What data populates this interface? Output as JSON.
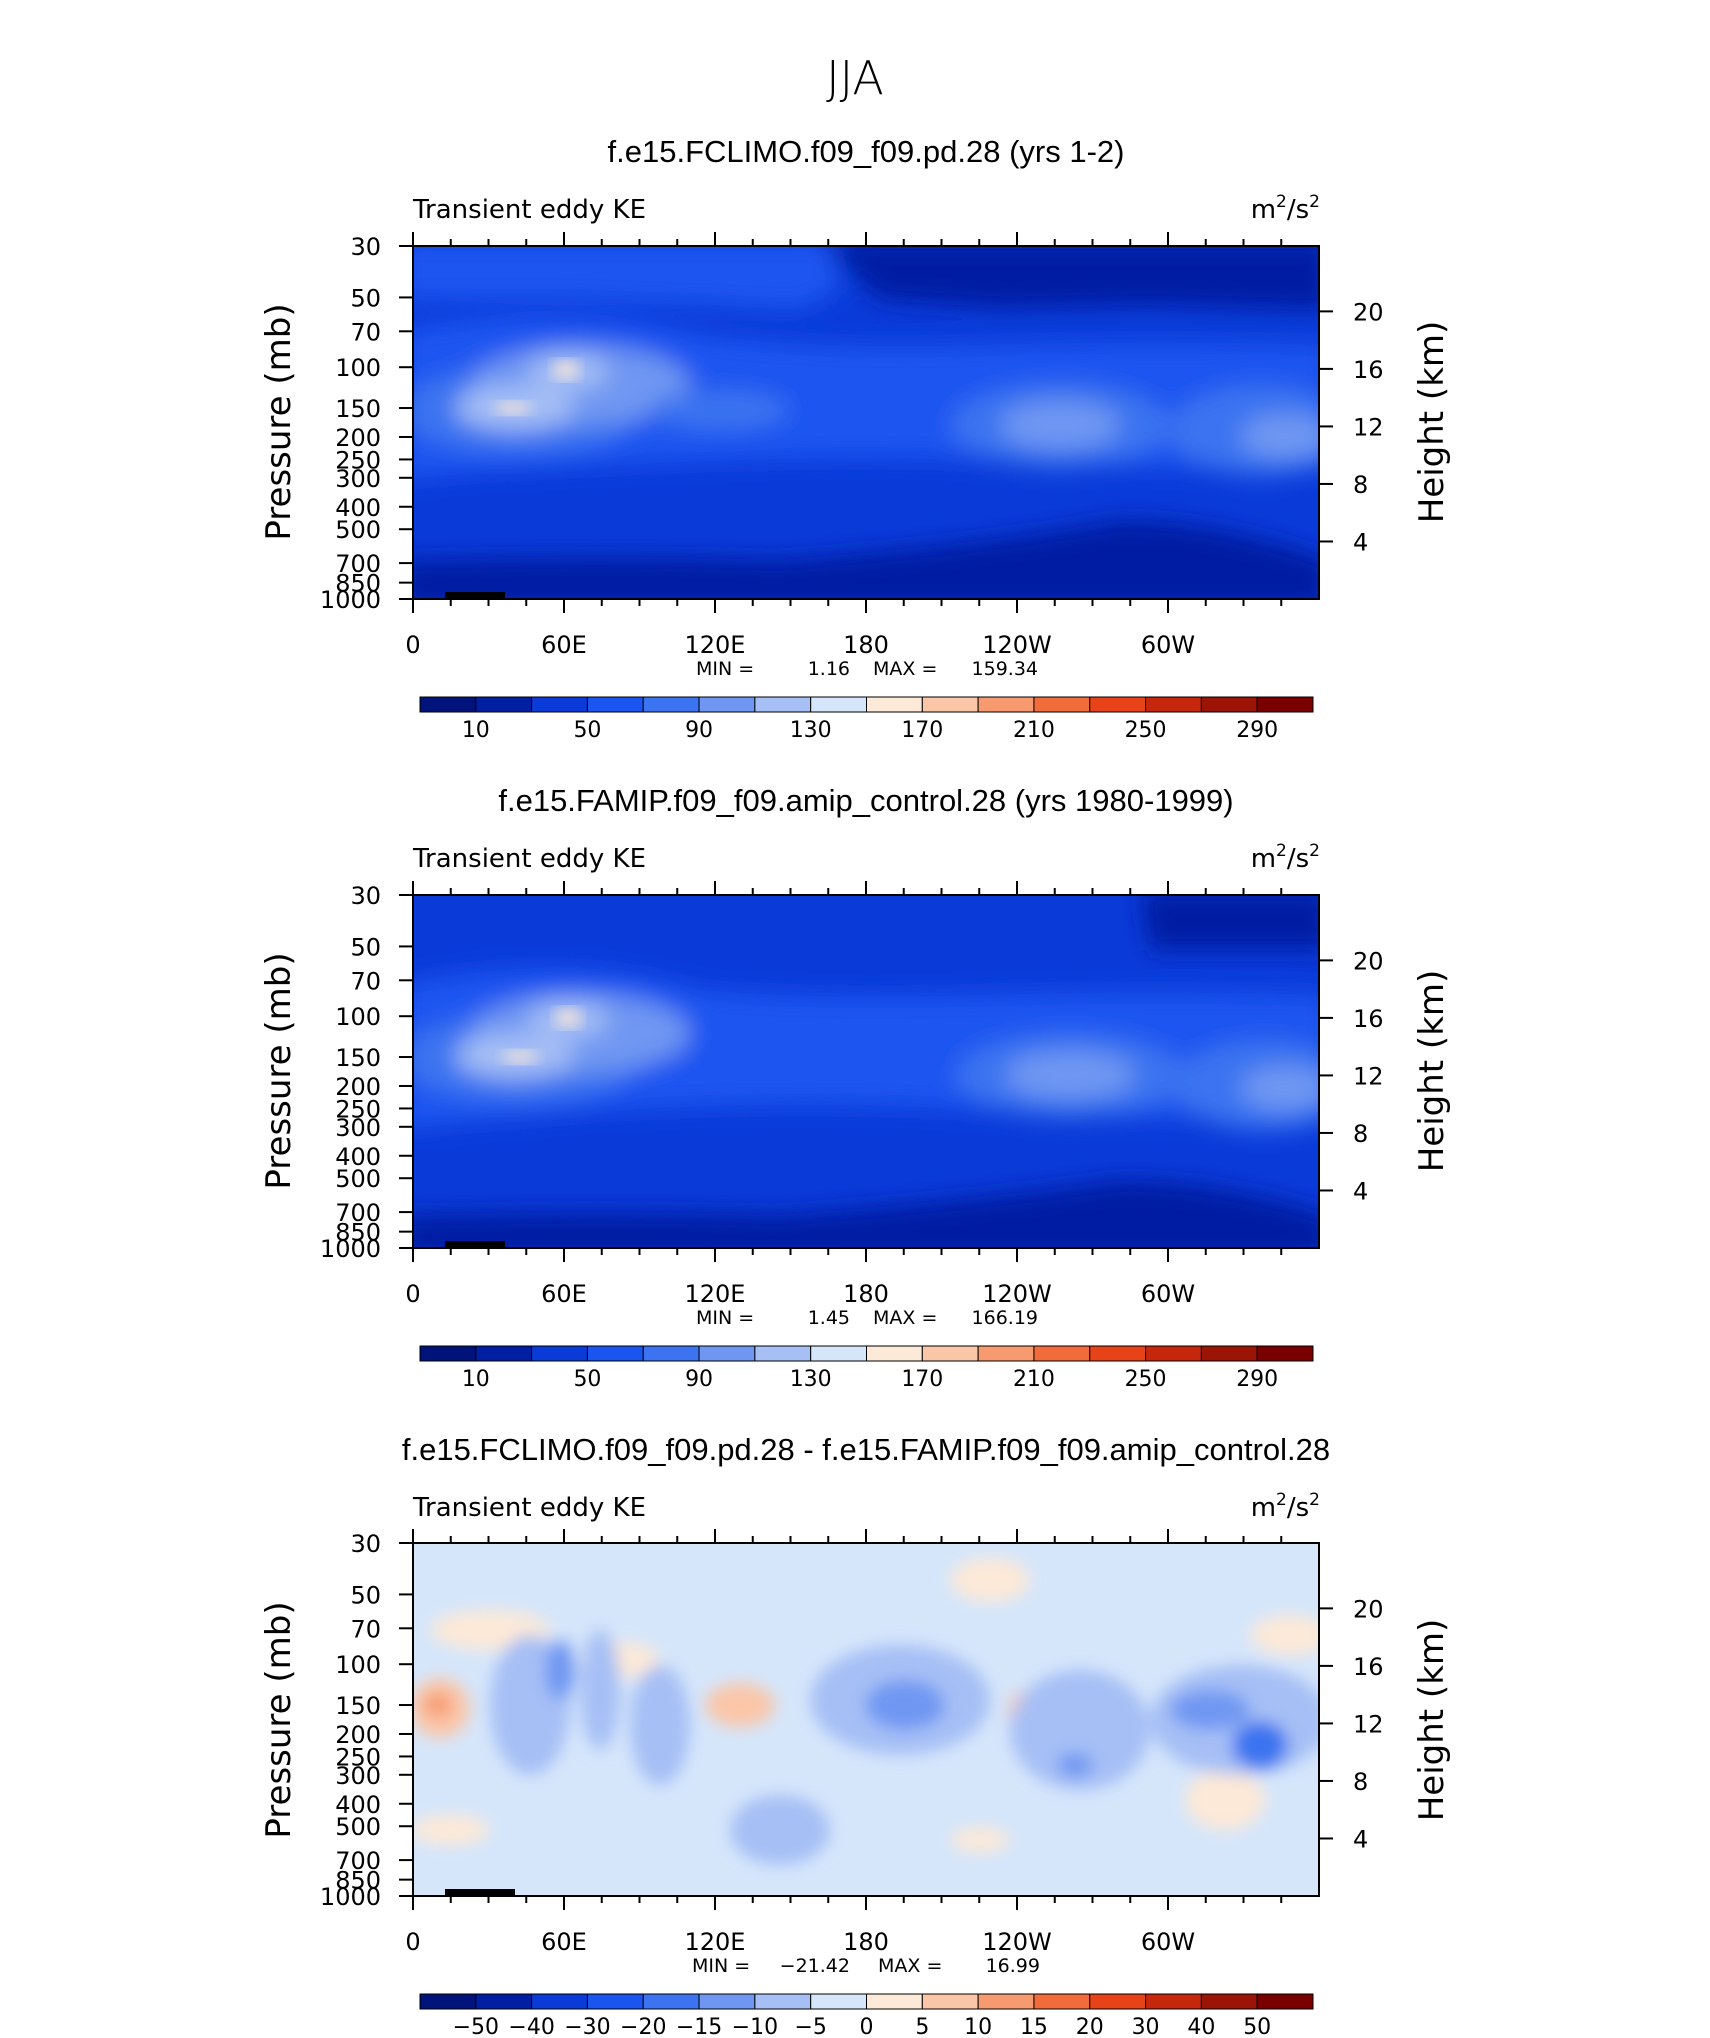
{
  "figure": {
    "main_title": "JJA",
    "left_label": "Transient eddy KE",
    "units": {
      "base": "m",
      "exp1": "2",
      "mid": "/s",
      "exp2": "2"
    },
    "y_title_left": "Pressure (mb)",
    "y_title_right": "Height (km)",
    "colors": {
      "background_field": "#cfe4fb",
      "land": "#000000"
    }
  },
  "chart_data": [
    {
      "type": "contour",
      "title": "f.e15.FCLIMO.f09_f09.pd.28 (yrs 1-2)",
      "x": {
        "ticks": [
          "0",
          "60E",
          "120E",
          "180",
          "120W",
          "60W"
        ],
        "range_deg": [
          0,
          360
        ]
      },
      "y_pressure": {
        "ticks": [
          "30",
          "50",
          "70",
          "100",
          "150",
          "200",
          "250",
          "300",
          "400",
          "500",
          "700",
          "850",
          "1000"
        ],
        "range_mb": [
          30,
          1000
        ]
      },
      "y_height": {
        "ticks": [
          "20",
          "16",
          "12",
          "8",
          "4"
        ]
      },
      "stats": {
        "min_label": "MIN =",
        "min": "1.16",
        "max_label": "MAX =",
        "max": "159.34"
      },
      "colorbar": {
        "labels": [
          "10",
          "50",
          "90",
          "130",
          "170",
          "210",
          "250",
          "290"
        ],
        "colors": [
          "#00137a",
          "#001fa3",
          "#0a3bd9",
          "#1a55f0",
          "#3b73f0",
          "#6f97f2",
          "#a6bff5",
          "#d5e6fb",
          "#fde9d7",
          "#fbc6a8",
          "#f79a70",
          "#f26b3a",
          "#e84218",
          "#c6260c",
          "#9b1405",
          "#7a0000"
        ]
      }
    },
    {
      "type": "contour",
      "title": "f.e15.FAMIP.f09_f09.amip_control.28 (yrs 1980-1999)",
      "x": {
        "ticks": [
          "0",
          "60E",
          "120E",
          "180",
          "120W",
          "60W"
        ],
        "range_deg": [
          0,
          360
        ]
      },
      "y_pressure": {
        "ticks": [
          "30",
          "50",
          "70",
          "100",
          "150",
          "200",
          "250",
          "300",
          "400",
          "500",
          "700",
          "850",
          "1000"
        ],
        "range_mb": [
          30,
          1000
        ]
      },
      "y_height": {
        "ticks": [
          "20",
          "16",
          "12",
          "8",
          "4"
        ]
      },
      "stats": {
        "min_label": "MIN =",
        "min": "1.45",
        "max_label": "MAX =",
        "max": "166.19"
      },
      "colorbar": {
        "labels": [
          "10",
          "50",
          "90",
          "130",
          "170",
          "210",
          "250",
          "290"
        ],
        "colors": [
          "#00137a",
          "#001fa3",
          "#0a3bd9",
          "#1a55f0",
          "#3b73f0",
          "#6f97f2",
          "#a6bff5",
          "#d5e6fb",
          "#fde9d7",
          "#fbc6a8",
          "#f79a70",
          "#f26b3a",
          "#e84218",
          "#c6260c",
          "#9b1405",
          "#7a0000"
        ]
      }
    },
    {
      "type": "contour",
      "title": "f.e15.FCLIMO.f09_f09.pd.28 - f.e15.FAMIP.f09_f09.amip_control.28",
      "x": {
        "ticks": [
          "0",
          "60E",
          "120E",
          "180",
          "120W",
          "60W"
        ],
        "range_deg": [
          0,
          360
        ]
      },
      "y_pressure": {
        "ticks": [
          "30",
          "50",
          "70",
          "100",
          "150",
          "200",
          "250",
          "300",
          "400",
          "500",
          "700",
          "850",
          "1000"
        ],
        "range_mb": [
          30,
          1000
        ]
      },
      "y_height": {
        "ticks": [
          "20",
          "16",
          "12",
          "8",
          "4"
        ]
      },
      "stats": {
        "min_label": "MIN =",
        "min": "−21.42",
        "max_label": "MAX =",
        "max": "16.99"
      },
      "colorbar": {
        "labels": [
          "−50",
          "−40",
          "−30",
          "−20",
          "−15",
          "−10",
          "−5",
          "0",
          "5",
          "10",
          "15",
          "20",
          "30",
          "40",
          "50"
        ],
        "colors": [
          "#00137a",
          "#001fa3",
          "#0a3bd9",
          "#1a55f0",
          "#3b73f0",
          "#6f97f2",
          "#a6bff5",
          "#d5e6fb",
          "#fde9d7",
          "#fbc6a8",
          "#f79a70",
          "#f26b3a",
          "#e84218",
          "#c6260c",
          "#9b1405",
          "#7a0000"
        ]
      }
    }
  ]
}
